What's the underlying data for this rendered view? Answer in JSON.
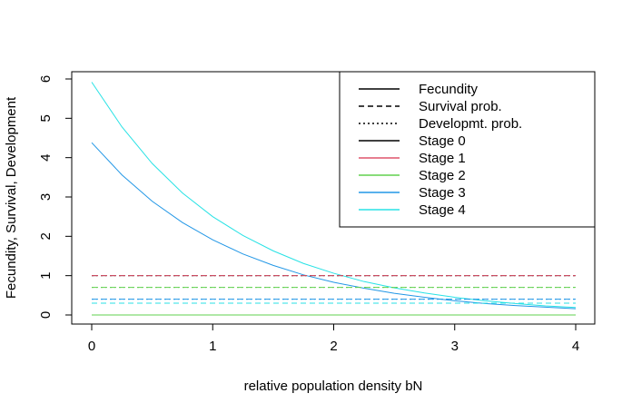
{
  "chart_data": {
    "type": "line",
    "title": "",
    "xlabel": "relative population density bN",
    "ylabel": "Fecundity, Survival, Development",
    "xlim": [
      0,
      4
    ],
    "ylim": [
      0,
      6
    ],
    "x_ticks": [
      "0",
      "1",
      "2",
      "3",
      "4"
    ],
    "y_ticks": [
      "0",
      "1",
      "2",
      "3",
      "4",
      "5",
      "6"
    ],
    "grid": false,
    "legend_position": "top-right",
    "legend": [
      {
        "label": "Fecundity",
        "linetype": "solid",
        "color": "#000000"
      },
      {
        "label": "Survival prob.",
        "linetype": "dashed",
        "color": "#000000"
      },
      {
        "label": "Developmt. prob.",
        "linetype": "dotted",
        "color": "#000000"
      },
      {
        "label": "Stage 0",
        "linetype": "solid",
        "color": "#000000"
      },
      {
        "label": "Stage 1",
        "linetype": "solid",
        "color": "#DF536B"
      },
      {
        "label": "Stage 2",
        "linetype": "solid",
        "color": "#61D04F"
      },
      {
        "label": "Stage 3",
        "linetype": "solid",
        "color": "#2297E6"
      },
      {
        "label": "Stage 4",
        "linetype": "solid",
        "color": "#28E2E5"
      }
    ],
    "x": [
      0,
      0.25,
      0.5,
      0.75,
      1,
      1.25,
      1.5,
      1.75,
      2,
      2.25,
      2.5,
      2.75,
      3,
      3.25,
      3.5,
      3.75,
      4
    ],
    "series": [
      {
        "legend": "Stage 0 fecundity",
        "linetype": "solid",
        "color": "#000000",
        "values": [
          0,
          0,
          0,
          0,
          0,
          0,
          0,
          0,
          0,
          0,
          0,
          0,
          0,
          0,
          0,
          0,
          0
        ]
      },
      {
        "legend": "Stage 1 fecundity",
        "linetype": "solid",
        "color": "#DF536B",
        "values": [
          0,
          0,
          0,
          0,
          0,
          0,
          0,
          0,
          0,
          0,
          0,
          0,
          0,
          0,
          0,
          0,
          0
        ]
      },
      {
        "legend": "Stage 2 fecundity",
        "linetype": "solid",
        "color": "#61D04F",
        "values": [
          0,
          0,
          0,
          0,
          0,
          0,
          0,
          0,
          0,
          0,
          0,
          0,
          0,
          0,
          0,
          0,
          0
        ]
      },
      {
        "legend": "Stage 3 fecundity",
        "linetype": "solid",
        "color": "#2297E6",
        "values": [
          4.38,
          3.56,
          2.89,
          2.35,
          1.91,
          1.55,
          1.26,
          1.02,
          0.83,
          0.68,
          0.55,
          0.45,
          0.36,
          0.29,
          0.24,
          0.2,
          0.16
        ]
      },
      {
        "legend": "Stage 4 fecundity",
        "linetype": "solid",
        "color": "#28E2E5",
        "values": [
          5.92,
          4.78,
          3.85,
          3.1,
          2.5,
          2.02,
          1.63,
          1.31,
          1.06,
          0.85,
          0.69,
          0.56,
          0.45,
          0.36,
          0.29,
          0.23,
          0.19
        ]
      },
      {
        "legend": "Stage 0 survival",
        "linetype": "dashed",
        "color": "#000000",
        "values": [
          1,
          1,
          1,
          1,
          1,
          1,
          1,
          1,
          1,
          1,
          1,
          1,
          1,
          1,
          1,
          1,
          1
        ]
      },
      {
        "legend": "Stage 1 survival",
        "linetype": "dashed",
        "color": "#DF536B",
        "values": [
          1,
          1,
          1,
          1,
          1,
          1,
          1,
          1,
          1,
          1,
          1,
          1,
          1,
          1,
          1,
          1,
          1
        ]
      },
      {
        "legend": "Stage 2 survival",
        "linetype": "dashed",
        "color": "#61D04F",
        "values": [
          0.7,
          0.7,
          0.7,
          0.7,
          0.7,
          0.7,
          0.7,
          0.7,
          0.7,
          0.7,
          0.7,
          0.7,
          0.7,
          0.7,
          0.7,
          0.7,
          0.7
        ]
      },
      {
        "legend": "Stage 3 survival",
        "linetype": "dashed",
        "color": "#2297E6",
        "values": [
          0.4,
          0.4,
          0.4,
          0.4,
          0.4,
          0.4,
          0.4,
          0.4,
          0.4,
          0.4,
          0.4,
          0.4,
          0.4,
          0.4,
          0.4,
          0.4,
          0.4
        ]
      },
      {
        "legend": "Stage 4 survival",
        "linetype": "dashed",
        "color": "#28E2E5",
        "values": [
          0.3,
          0.3,
          0.3,
          0.3,
          0.3,
          0.3,
          0.3,
          0.3,
          0.3,
          0.3,
          0.3,
          0.3,
          0.3,
          0.3,
          0.3,
          0.3,
          0.3
        ]
      },
      {
        "legend": "Stage 0 development",
        "linetype": "dotted",
        "color": "#000000",
        "values": [
          1,
          1,
          1,
          1,
          1,
          1,
          1,
          1,
          1,
          1,
          1,
          1,
          1,
          1,
          1,
          1,
          1
        ]
      },
      {
        "legend": "Stage 1 development",
        "linetype": "dotted",
        "color": "#DF536B",
        "values": [
          1,
          1,
          1,
          1,
          1,
          1,
          1,
          1,
          1,
          1,
          1,
          1,
          1,
          1,
          1,
          1,
          1
        ]
      },
      {
        "legend": "Stage 2 development",
        "linetype": "dotted",
        "color": "#61D04F",
        "values": [
          0.7,
          0.7,
          0.7,
          0.7,
          0.7,
          0.7,
          0.7,
          0.7,
          0.7,
          0.7,
          0.7,
          0.7,
          0.7,
          0.7,
          0.7,
          0.7,
          0.7
        ]
      },
      {
        "legend": "Stage 3 development",
        "linetype": "dotted",
        "color": "#2297E6",
        "values": [
          0.4,
          0.4,
          0.4,
          0.4,
          0.4,
          0.4,
          0.4,
          0.4,
          0.4,
          0.4,
          0.4,
          0.4,
          0.4,
          0.4,
          0.4,
          0.4,
          0.4
        ]
      }
    ]
  }
}
